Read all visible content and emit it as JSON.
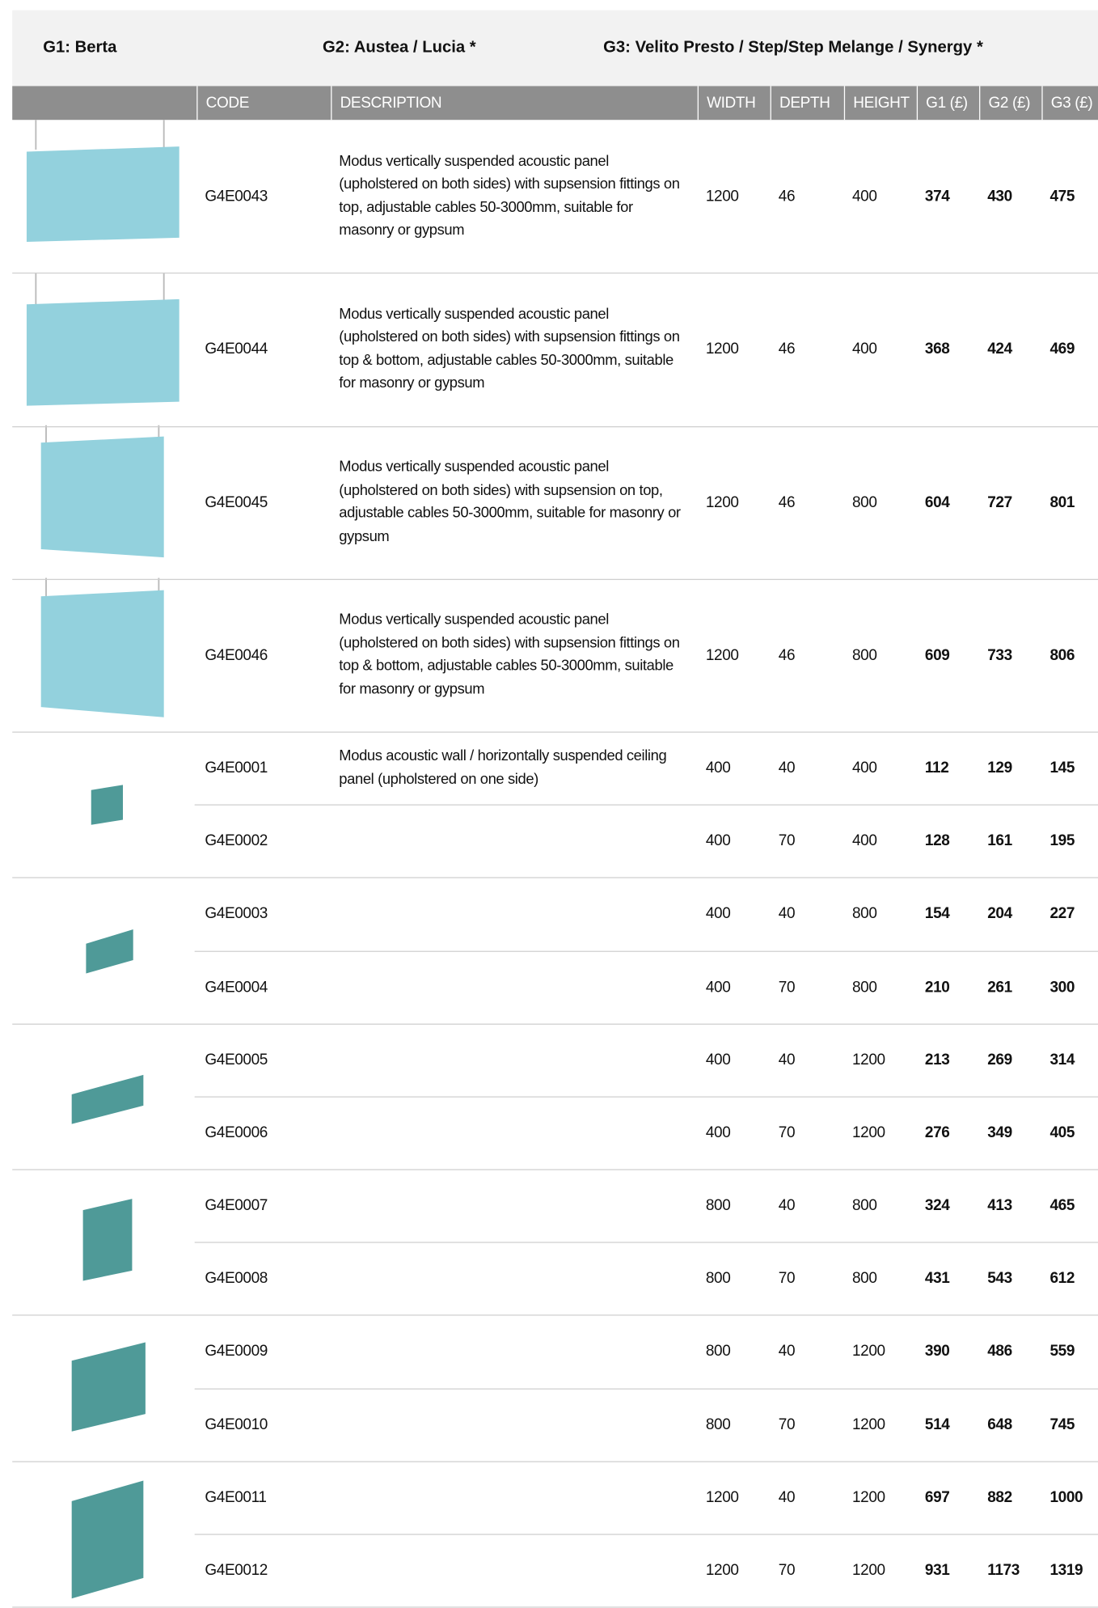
{
  "groups": [
    "G1: Berta",
    "G2: Austea / Lucia *",
    "G3: Velito Presto / Step/Step Melange / Synergy *"
  ],
  "columns": [
    "CODE",
    "DESCRIPTION",
    "WIDTH",
    "DEPTH",
    "HEIGHT",
    "G1 (£)",
    "G2 (£)",
    "G3 (£)"
  ],
  "rows": [
    {
      "code": "G4E0043",
      "description": "Modus vertically suspended acoustic panel (upholstered on both sides) with supsension fittings on top, adjustable cables 50-3000mm, suitable for masonry or gypsum",
      "width": 1200,
      "depth": 46,
      "height": 400,
      "g1": 374,
      "g2": 430,
      "g3": 475
    },
    {
      "code": "G4E0044",
      "description": "Modus vertically suspended acoustic panel (upholstered on both sides) with supsension fittings on top & bottom, adjustable cables 50-3000mm, suitable for masonry or gypsum",
      "width": 1200,
      "depth": 46,
      "height": 400,
      "g1": 368,
      "g2": 424,
      "g3": 469
    },
    {
      "code": "G4E0045",
      "description": "Modus vertically suspended acoustic panel (upholstered on both sides) with supsension on top, adjustable cables 50-3000mm, suitable for masonry or gypsum",
      "width": 1200,
      "depth": 46,
      "height": 800,
      "g1": 604,
      "g2": 727,
      "g3": 801
    },
    {
      "code": "G4E0046",
      "description": "Modus vertically suspended acoustic panel (upholstered on both sides) with supsension fittings on top & bottom, adjustable cables 50-3000mm, suitable for masonry or gypsum",
      "width": 1200,
      "depth": 46,
      "height": 800,
      "g1": 609,
      "g2": 733,
      "g3": 806
    },
    {
      "code": "G4E0001",
      "description": "Modus acoustic wall / horizontally suspended ceiling panel (upholstered on one side)",
      "width": 400,
      "depth": 40,
      "height": 400,
      "g1": 112,
      "g2": 129,
      "g3": 145
    },
    {
      "code": "G4E0002",
      "width": 400,
      "depth": 70,
      "height": 400,
      "g1": 128,
      "g2": 161,
      "g3": 195
    },
    {
      "code": "G4E0003",
      "width": 400,
      "depth": 40,
      "height": 800,
      "g1": 154,
      "g2": 204,
      "g3": 227
    },
    {
      "code": "G4E0004",
      "width": 400,
      "depth": 70,
      "height": 800,
      "g1": 210,
      "g2": 261,
      "g3": 300
    },
    {
      "code": "G4E0005",
      "width": 400,
      "depth": 40,
      "height": 1200,
      "g1": 213,
      "g2": 269,
      "g3": 314
    },
    {
      "code": "G4E0006",
      "width": 400,
      "depth": 70,
      "height": 1200,
      "g1": 276,
      "g2": 349,
      "g3": 405
    },
    {
      "code": "G4E0007",
      "width": 800,
      "depth": 40,
      "height": 800,
      "g1": 324,
      "g2": 413,
      "g3": 465
    },
    {
      "code": "G4E0008",
      "width": 800,
      "depth": 70,
      "height": 800,
      "g1": 431,
      "g2": 543,
      "g3": 612
    },
    {
      "code": "G4E0009",
      "width": 800,
      "depth": 40,
      "height": 1200,
      "g1": 390,
      "g2": 486,
      "g3": 559
    },
    {
      "code": "G4E0010",
      "width": 800,
      "depth": 70,
      "height": 1200,
      "g1": 514,
      "g2": 648,
      "g3": 745
    },
    {
      "code": "G4E0011",
      "width": 1200,
      "depth": 40,
      "height": 1200,
      "g1": 697,
      "g2": 882,
      "g3": 1000
    },
    {
      "code": "G4E0012",
      "width": 1200,
      "depth": 70,
      "height": 1200,
      "g1": 931,
      "g2": 1173,
      "g3": 1319
    }
  ]
}
